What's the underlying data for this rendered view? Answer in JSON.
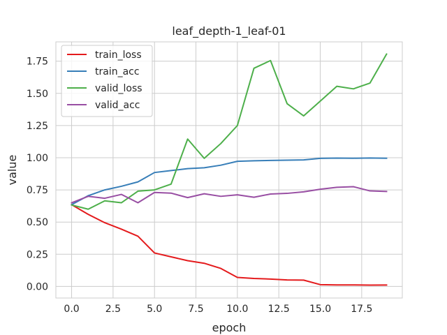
{
  "chart_data": {
    "type": "line",
    "title": "leaf_depth-1_leaf-01",
    "xlabel": "epoch",
    "ylabel": "value",
    "xlim": [
      -0.95,
      19.95
    ],
    "ylim": [
      -0.09,
      1.9
    ],
    "xticks": [
      0.0,
      2.5,
      5.0,
      7.5,
      10.0,
      12.5,
      15.0,
      17.5
    ],
    "xtick_labels": [
      "0.0",
      "2.5",
      "5.0",
      "7.5",
      "10.0",
      "12.5",
      "15.0",
      "17.5"
    ],
    "yticks": [
      0.0,
      0.25,
      0.5,
      0.75,
      1.0,
      1.25,
      1.5,
      1.75
    ],
    "ytick_labels": [
      "0.00",
      "0.25",
      "0.50",
      "0.75",
      "1.00",
      "1.25",
      "1.50",
      "1.75"
    ],
    "grid": true,
    "legend_position": "upper-left",
    "x": [
      0,
      1,
      2,
      3,
      4,
      5,
      6,
      7,
      8,
      9,
      10,
      11,
      12,
      13,
      14,
      15,
      16,
      17,
      18,
      19
    ],
    "series": [
      {
        "name": "train_loss",
        "color": "#e41a1c",
        "values": [
          0.635,
          0.56,
          0.495,
          0.445,
          0.39,
          0.26,
          0.23,
          0.2,
          0.18,
          0.14,
          0.07,
          0.062,
          0.057,
          0.05,
          0.049,
          0.014,
          0.012,
          0.012,
          0.01,
          0.011
        ]
      },
      {
        "name": "train_acc",
        "color": "#377eb8",
        "values": [
          0.635,
          0.705,
          0.75,
          0.778,
          0.812,
          0.885,
          0.9,
          0.915,
          0.922,
          0.942,
          0.972,
          0.976,
          0.979,
          0.981,
          0.983,
          0.995,
          0.997,
          0.996,
          0.998,
          0.996
        ]
      },
      {
        "name": "valid_loss",
        "color": "#4daf4a",
        "values": [
          0.633,
          0.6,
          0.665,
          0.65,
          0.74,
          0.75,
          0.795,
          1.145,
          0.995,
          1.11,
          1.25,
          1.695,
          1.755,
          1.42,
          1.325,
          1.44,
          1.555,
          1.535,
          1.58,
          1.805
        ]
      },
      {
        "name": "valid_acc",
        "color": "#984ea3",
        "values": [
          0.65,
          0.7,
          0.685,
          0.715,
          0.65,
          0.73,
          0.725,
          0.69,
          0.72,
          0.7,
          0.712,
          0.693,
          0.718,
          0.723,
          0.735,
          0.755,
          0.77,
          0.775,
          0.742,
          0.738
        ]
      }
    ]
  }
}
